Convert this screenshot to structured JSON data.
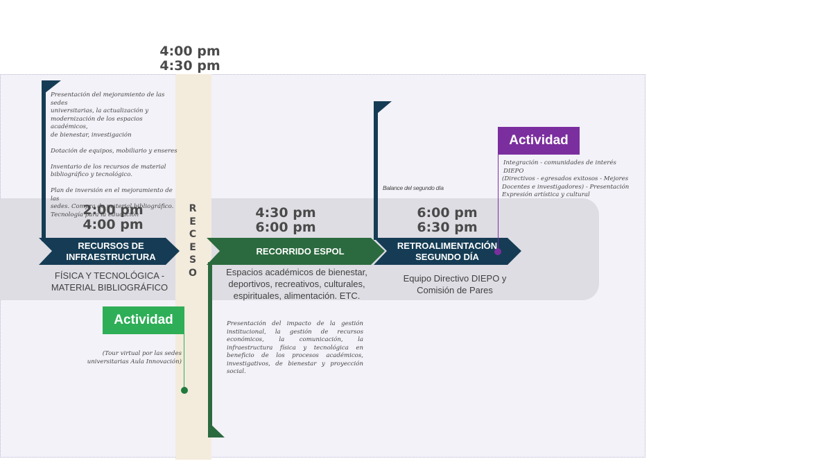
{
  "receso": {
    "time_start": "4:00 pm",
    "time_end": "4:30 pm",
    "letters": [
      "R",
      "E",
      "C",
      "E",
      "S",
      "O"
    ]
  },
  "stages": [
    {
      "title_line1": "RECURSOS DE",
      "title_line2": "INFRAESTRUCTURA",
      "time_start": "2:00 pm",
      "time_end": "4:00 pm",
      "sub_line1": "FÍSICA Y TECNOLÓGICA -",
      "sub_line2": "MATERIAL BIBLIOGRÁFICO",
      "color": "#153c54"
    },
    {
      "title_line1": "RECORRIDO ESPOL",
      "time_start": "4:30 pm",
      "time_end": "6:00 pm",
      "sub_line1": "Espacios académicos de bienestar,",
      "sub_line2": "deportivos, recreativos, culturales,",
      "sub_line3": "espirituales, alimentación. ETC.",
      "color": "#2b6a3e"
    },
    {
      "title_line1": "RETROALIMENTACIÓN",
      "title_line2": "SEGUNDO DÍA",
      "time_start": "6:00 pm",
      "time_end": "6:30 pm",
      "sub_line1": "Equipo Directivo DIEPO y",
      "sub_line2": "Comisión de Pares",
      "color": "#153c54"
    }
  ],
  "notes": {
    "infra_lines": [
      "Presentación del mejoramiento de las sedes",
      "universitarias, la actualización y",
      "modernización de los espacios académicos,",
      "de bienestar, investigación",
      "",
      "Dotación de equipos, mobiliario y enseres",
      "",
      "Inventario de los recursos de material",
      "bibliográfico y tecnológico.",
      "",
      "Plan de inversión en el mejoramiento de las",
      "sedes. Compra de material bibliográfico.",
      "Tecnología para la educación"
    ],
    "espol_lines": [
      "Presentación del impacto de la gestión",
      "institucional, la gestión de recursos",
      "económicos, la comunicación, la infraestructura",
      "física y tecnológica en beneficio de los procesos",
      "académicos, investigativos, de bienestar y",
      "proyección social."
    ],
    "balance": "Balance del segundo día",
    "purple_lines": [
      "Integración - comunidades de interés DIEPO",
      "(Directivos - egresados exitosos - Mejores",
      "Docentes e investigadores) - Presentación",
      "Expresión artística y cultural"
    ]
  },
  "activities": [
    {
      "label": "Actividad",
      "color": "#2eae57",
      "desc_line1": "(Tour virtual por las sedes",
      "desc_line2": "universitarias Aula Innovación)"
    },
    {
      "label": "Actividad",
      "color": "#7b2f9e"
    }
  ],
  "colors": {
    "navy": "#153c54",
    "green": "#2b6a3e",
    "purple": "#7b2f9e",
    "band": "#dedde3",
    "receso": "#f3ebdc"
  }
}
